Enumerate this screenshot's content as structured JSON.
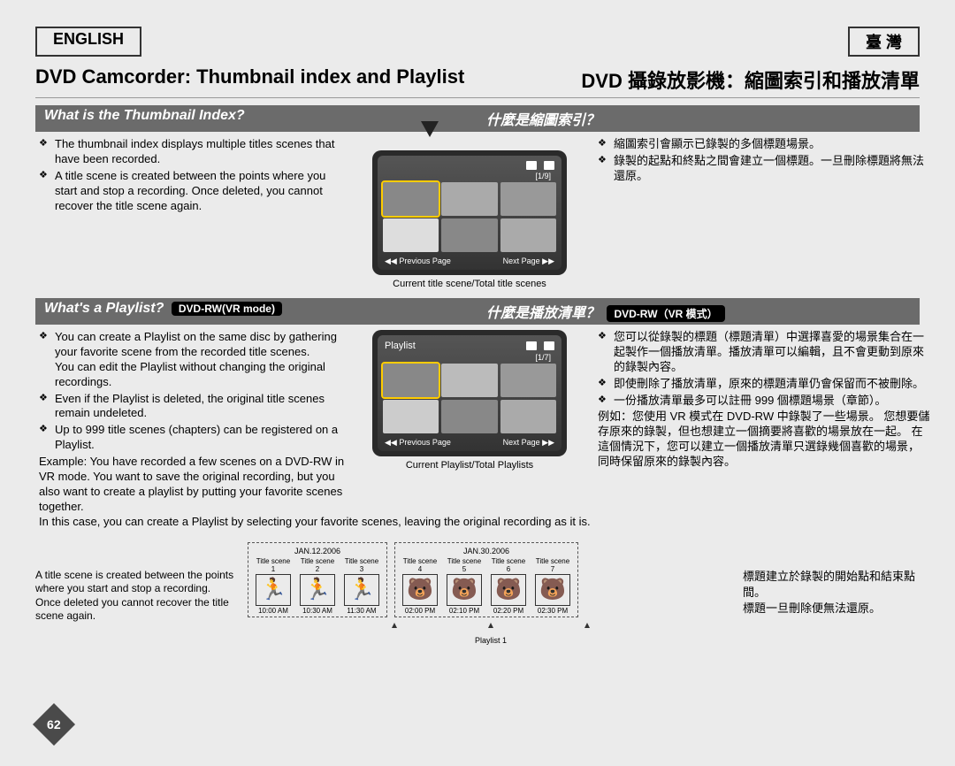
{
  "langTags": {
    "left": "ENGLISH",
    "right": "臺 灣"
  },
  "mainTitles": {
    "left": "DVD Camcorder: Thumbnail index and Playlist",
    "right": "DVD 攝錄放影機：縮圖索引和播放清單"
  },
  "section1": {
    "left_title": "What is the Thumbnail Index?",
    "right_title": "什麼是縮圖索引？",
    "left_bullets": [
      "The thumbnail index displays multiple titles scenes that have been recorded.",
      "A title scene is created between the points where you start and stop a recording. Once deleted, you cannot recover the title scene again."
    ],
    "right_bullets": [
      "縮圖索引會顯示已錄製的多個標題場景。",
      "錄製的起點和終點之間會建立一個標題。一旦刪除標題將無法還原。"
    ],
    "screen": {
      "counter": "[1/9]",
      "prev": "Previous Page",
      "next": "Next Page",
      "caption": "Current title scene/Total title scenes"
    }
  },
  "section2": {
    "left_title": "What's a Playlist?",
    "left_badge": "DVD-RW(VR mode)",
    "right_title": "什麼是播放清單？",
    "right_badge": "DVD-RW（VR 模式）",
    "left_bullets": [
      "You can create a Playlist on the same disc by gathering your favorite scene from the recorded title scenes.\nYou can edit the Playlist without changing the original recordings.",
      "Even if the Playlist is deleted, the original title scenes remain undeleted.",
      "Up to 999 title scenes (chapters) can be registered on a Playlist."
    ],
    "right_bullets": [
      "您可以從錄製的標題（標題清單）中選擇喜愛的場景集合在一起製作一個播放清單。播放清單可以編輯，且不會更動到原來的錄製內容。",
      "即使刪除了播放清單，原來的標題清單仍會保留而不被刪除。",
      "一份播放清單最多可以註冊 999 個標題場景（章節）。"
    ],
    "left_example": "Example: You have recorded a few scenes on a DVD-RW in VR mode. You want to save the original recording, but you also want to create a playlist by putting your favorite scenes together.\nIn this case, you can create a Playlist by selecting your favorite scenes, leaving the original recording as it is.",
    "right_example": "例如：您使用 VR 模式在 DVD-RW 中錄製了一些場景。 您想要儲存原來的錄製，但也想建立一個摘要將喜歡的場景放在一起。 在這個情況下，您可以建立一個播放清單只選錄幾個喜歡的場景，同時保留原來的錄製內容。",
    "screen": {
      "label": "Playlist",
      "counter": "[1/7]",
      "prev": "Previous Page",
      "next": "Next Page",
      "caption": "Current Playlist/Total Playlists"
    }
  },
  "timeline": {
    "left_note": "A title scene is created between the points where you start and stop a recording. Once deleted you cannot recover the title scene again.",
    "right_note": "標題建立於錄製的開始點和結束點間。\n標題一旦刪除便無法還原。",
    "group1": {
      "date": "JAN.12.2006",
      "scenes": [
        {
          "t": "Title scene 1",
          "time": "10:00 AM"
        },
        {
          "t": "Title scene 2",
          "time": "10:30 AM"
        },
        {
          "t": "Title scene 3",
          "time": "11:30 AM"
        }
      ]
    },
    "group2": {
      "date": "JAN.30.2006",
      "scenes": [
        {
          "t": "Title scene 4",
          "time": "02:00 PM"
        },
        {
          "t": "Title scene 5",
          "time": "02:10 PM"
        },
        {
          "t": "Title scene 6",
          "time": "02:20 PM"
        },
        {
          "t": "Title scene 7",
          "time": "02:30 PM"
        }
      ]
    },
    "playlist_label": "Playlist 1"
  },
  "pageNum": "62",
  "colors": {
    "bg": "#ebebeb",
    "bar": "#6b6b6b",
    "screen": "#2a2a2a"
  }
}
